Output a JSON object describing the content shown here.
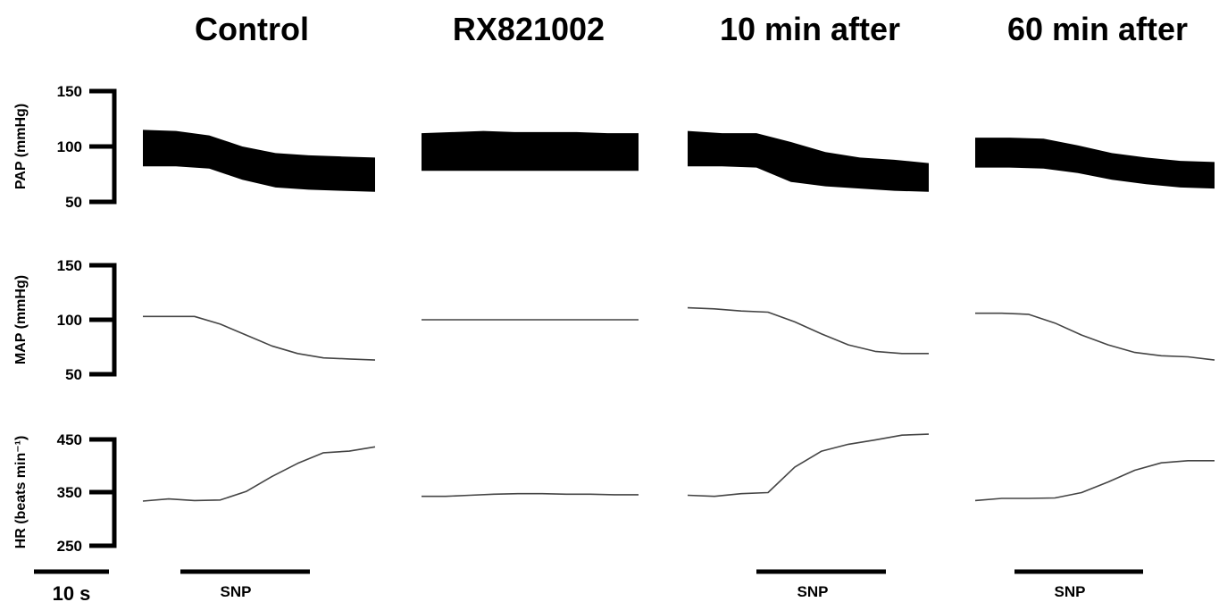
{
  "chart_data": {
    "type": "line",
    "panels": [
      "Control",
      "RX821002",
      "10 min after",
      "60 min after"
    ],
    "rows": [
      {
        "key": "pap",
        "ylabel": "PAP (mmHg)",
        "ticks": [
          "150",
          "100",
          "50"
        ],
        "tick_values": [
          150,
          100,
          50
        ],
        "ylim": [
          50,
          150
        ],
        "series": [
          {
            "panel": "Control",
            "upper": [
              115,
              114,
              110,
              100,
              94,
              92,
              91,
              90
            ],
            "lower": [
              82,
              82,
              80,
              70,
              63,
              61,
              60,
              59
            ]
          },
          {
            "panel": "RX821002",
            "upper": [
              112,
              113,
              114,
              113,
              113,
              113,
              112,
              112
            ],
            "lower": [
              78,
              78,
              78,
              78,
              78,
              78,
              78,
              78
            ]
          },
          {
            "panel": "10 min after",
            "upper": [
              114,
              112,
              112,
              104,
              95,
              90,
              88,
              85
            ],
            "lower": [
              82,
              82,
              81,
              68,
              64,
              62,
              60,
              59
            ]
          },
          {
            "panel": "60 min after",
            "upper": [
              108,
              108,
              107,
              101,
              94,
              90,
              87,
              86
            ],
            "lower": [
              81,
              81,
              80,
              76,
              70,
              66,
              63,
              62
            ]
          }
        ]
      },
      {
        "key": "map",
        "ylabel": "MAP (mmHg)",
        "ticks": [
          "150",
          "100",
          "50"
        ],
        "tick_values": [
          150,
          100,
          50
        ],
        "ylim": [
          50,
          150
        ],
        "series": [
          {
            "panel": "Control",
            "values": [
              103,
              103,
              103,
              96,
              86,
              76,
              69,
              65,
              64,
              63
            ]
          },
          {
            "panel": "RX821002",
            "values": [
              100,
              100,
              100,
              100,
              100,
              100,
              100,
              100,
              100,
              100
            ]
          },
          {
            "panel": "10 min after",
            "values": [
              111,
              110,
              108,
              107,
              98,
              87,
              77,
              71,
              69,
              69
            ]
          },
          {
            "panel": "60 min after",
            "values": [
              106,
              106,
              105,
              97,
              86,
              77,
              70,
              67,
              66,
              63
            ]
          }
        ]
      },
      {
        "key": "hr",
        "ylabel": "HR (beats min⁻¹)",
        "ticks": [
          "450",
          "350",
          "250"
        ],
        "tick_values": [
          450,
          350,
          250
        ],
        "ylim": [
          250,
          450
        ],
        "series": [
          {
            "panel": "Control",
            "values": [
              334,
              338,
              335,
              336,
              352,
              380,
              405,
              425,
              428,
              436
            ]
          },
          {
            "panel": "RX821002",
            "values": [
              343,
              343,
              345,
              347,
              348,
              348,
              347,
              347,
              346,
              346
            ]
          },
          {
            "panel": "10 min after",
            "values": [
              345,
              343,
              348,
              350,
              398,
              428,
              441,
              449,
              458,
              460
            ]
          },
          {
            "panel": "60 min after",
            "values": [
              335,
              339,
              339,
              340,
              350,
              370,
              392,
              406,
              410,
              410
            ]
          }
        ]
      }
    ],
    "annotations": {
      "scale_bar": "10 s",
      "snp_label": "SNP",
      "snp_panels": [
        "Control",
        "10 min after",
        "60 min after"
      ]
    }
  },
  "colors": {
    "trace": "#000000",
    "thin_trace": "#444444",
    "background": "#ffffff"
  }
}
